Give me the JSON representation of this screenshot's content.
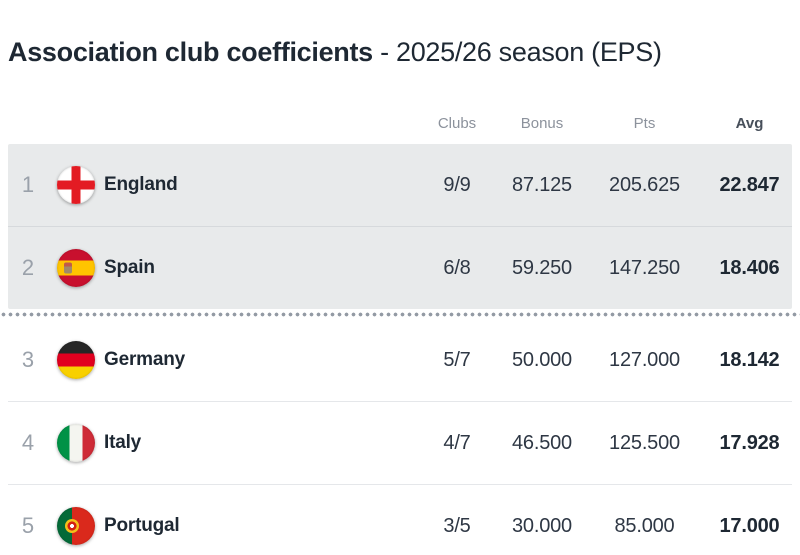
{
  "title": {
    "main": "Association club coefficients",
    "suffix": "- 2025/26 season (EPS)"
  },
  "table": {
    "columns": {
      "clubs": "Clubs",
      "bonus": "Bonus",
      "pts": "Pts",
      "avg": "Avg"
    },
    "rows": [
      {
        "rank": "1",
        "country": "England",
        "flag_icon": "england-flag-icon",
        "clubs": "9/9",
        "bonus": "87.125",
        "pts": "205.625",
        "avg": "22.847",
        "qualified": true
      },
      {
        "rank": "2",
        "country": "Spain",
        "flag_icon": "spain-flag-icon",
        "clubs": "6/8",
        "bonus": "59.250",
        "pts": "147.250",
        "avg": "18.406",
        "qualified": true
      },
      {
        "rank": "3",
        "country": "Germany",
        "flag_icon": "germany-flag-icon",
        "clubs": "5/7",
        "bonus": "50.000",
        "pts": "127.000",
        "avg": "18.142",
        "qualified": false
      },
      {
        "rank": "4",
        "country": "Italy",
        "flag_icon": "italy-flag-icon",
        "clubs": "4/7",
        "bonus": "46.500",
        "pts": "125.500",
        "avg": "17.928",
        "qualified": false
      },
      {
        "rank": "5",
        "country": "Portugal",
        "flag_icon": "portugal-flag-icon",
        "clubs": "3/5",
        "bonus": "30.000",
        "pts": "85.000",
        "avg": "17.000",
        "qualified": false
      }
    ]
  },
  "colors": {
    "text_dark": "#1e2833",
    "label_gray": "#8c929c",
    "rank_gray": "#9aa1aa",
    "highlight_row_bg": "#e8eaeb",
    "cutoff_dots": "#939aa4"
  }
}
